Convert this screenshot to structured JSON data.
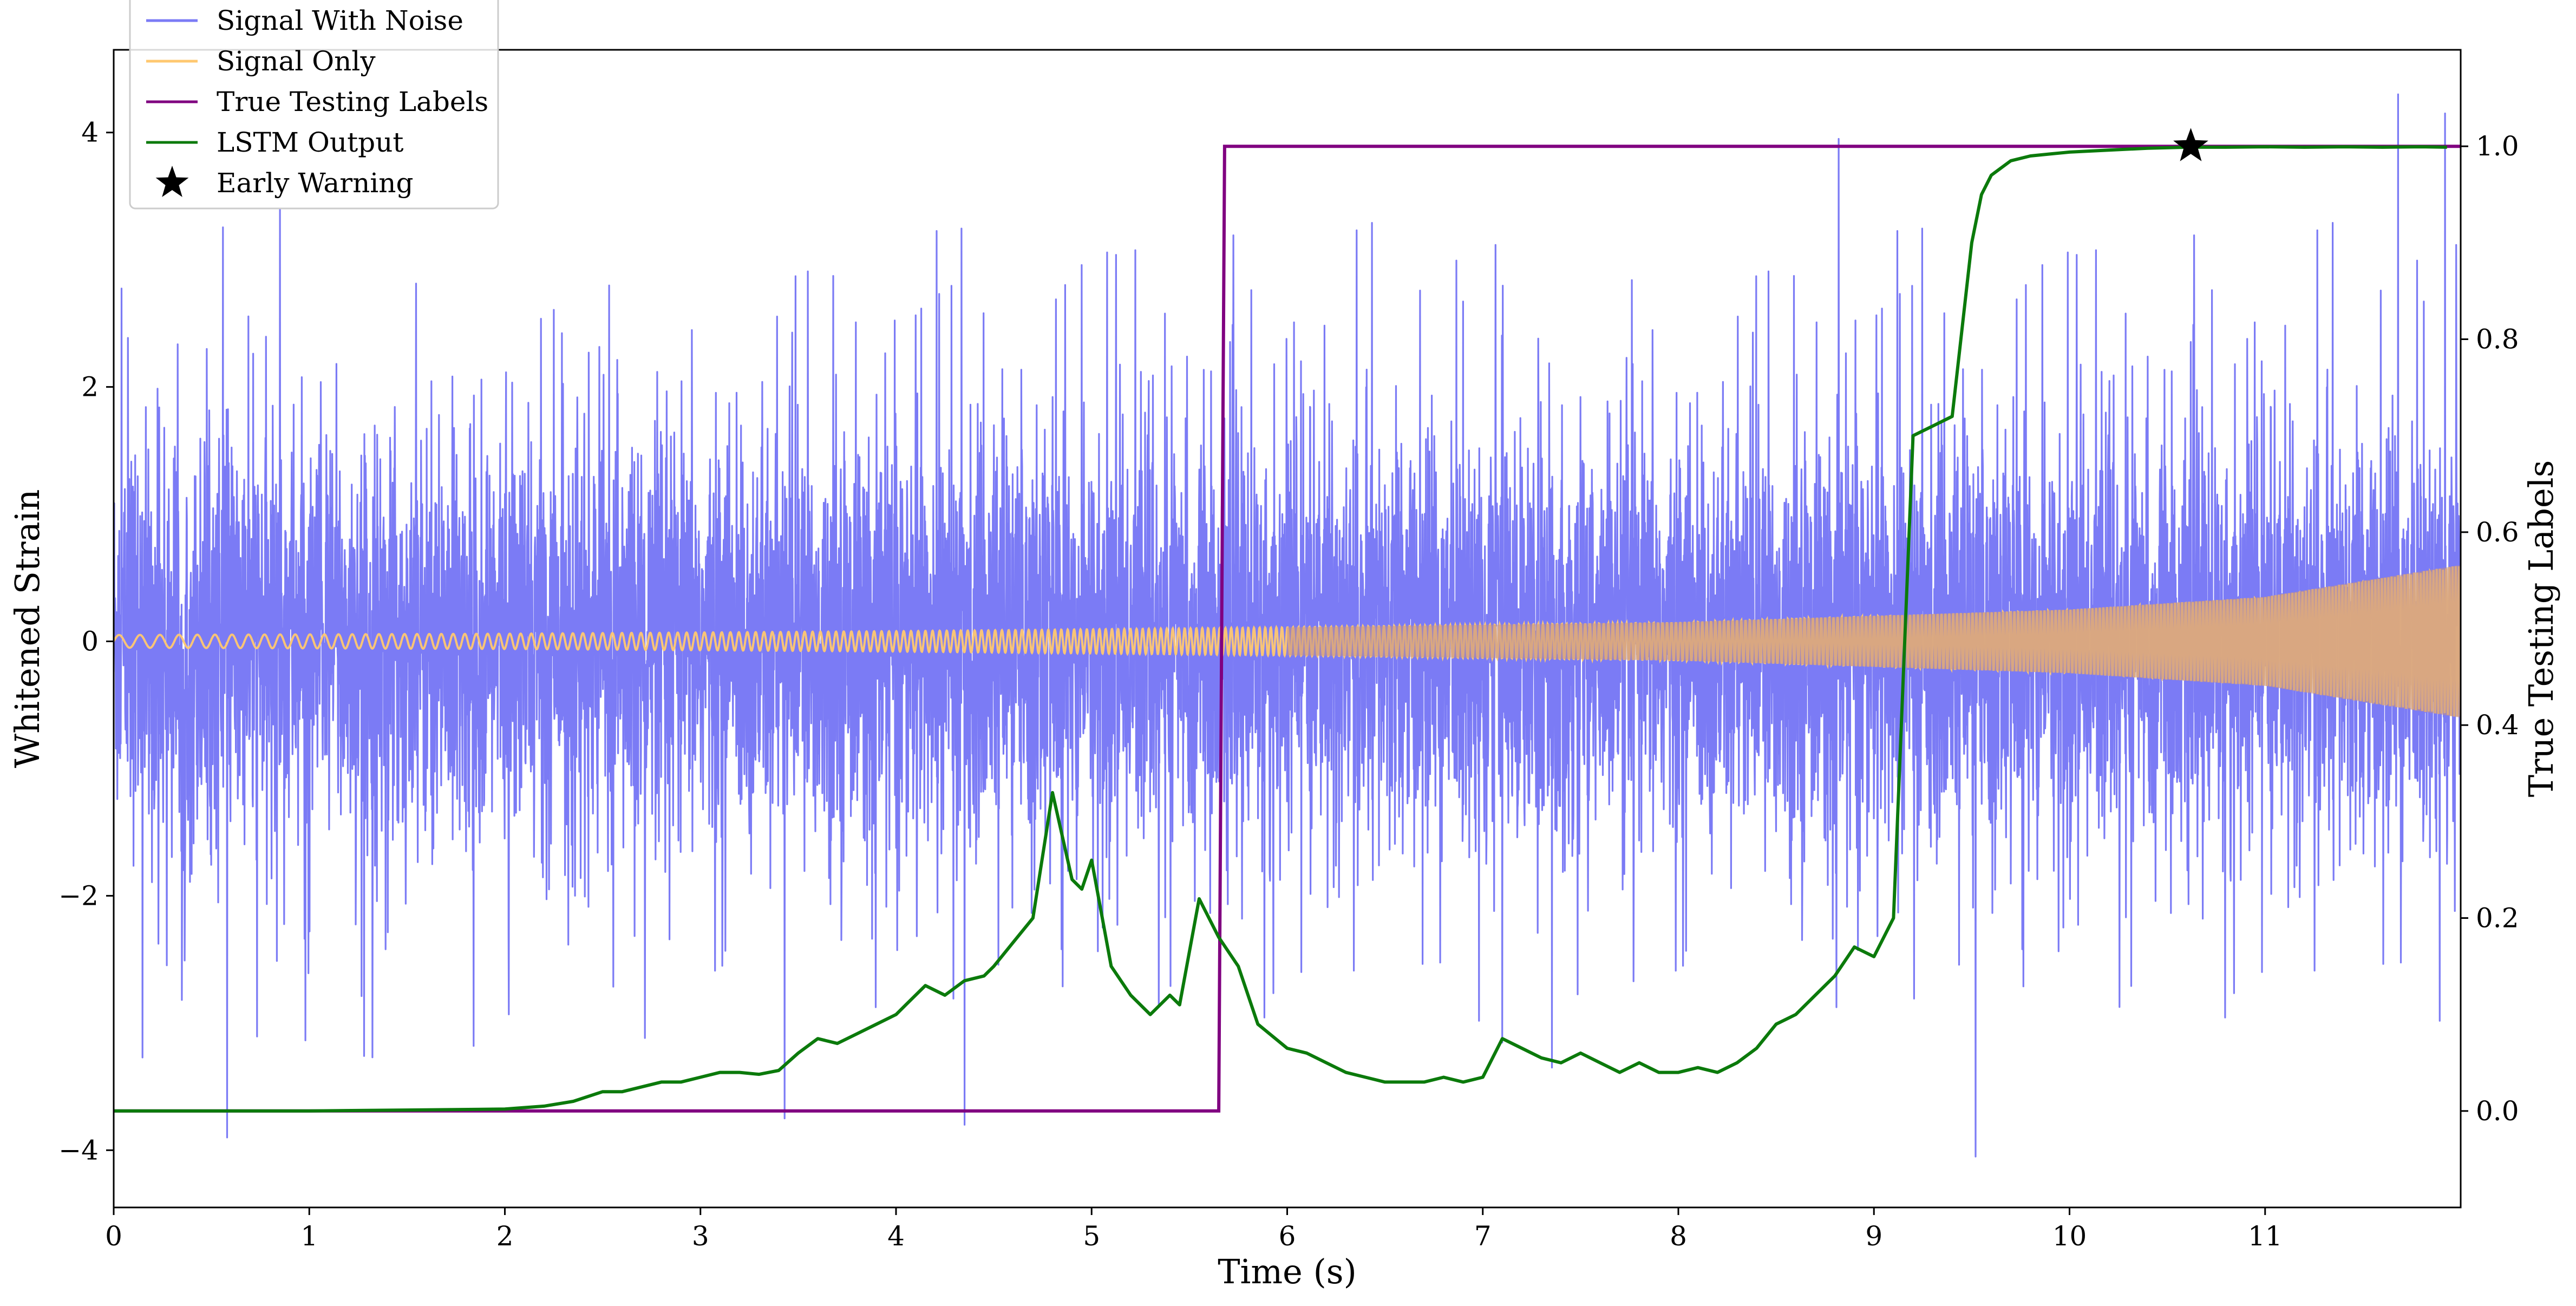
{
  "chart_data": {
    "type": "line",
    "title": "",
    "xlabel": "Time (s)",
    "ylabel_left": "Whitened Strain",
    "ylabel_right": "True Testing Labels",
    "xlim": [
      0,
      12
    ],
    "ylim_left": [
      -4.45,
      4.65
    ],
    "ylim_right": [
      -0.1,
      1.1
    ],
    "x_ticks": [
      0,
      1,
      2,
      3,
      4,
      5,
      6,
      7,
      8,
      9,
      10,
      11
    ],
    "x_tick_labels": [
      "0",
      "1",
      "2",
      "3",
      "4",
      "5",
      "6",
      "7",
      "8",
      "9",
      "10",
      "11"
    ],
    "y_left_ticks": [
      -4,
      -2,
      0,
      2,
      4
    ],
    "y_left_tick_labels": [
      "−4",
      "−2",
      "0",
      "2",
      "4"
    ],
    "y_right_ticks": [
      0.0,
      0.2,
      0.4,
      0.6,
      0.8,
      1.0
    ],
    "y_right_tick_labels": [
      "0.0",
      "0.2",
      "0.4",
      "0.6",
      "0.8",
      "1.0"
    ],
    "grid": false,
    "legend_position": "top-left",
    "colors": {
      "noise": "#7b7bf5",
      "signal": "#ffc870",
      "overlap": "#c0908a",
      "labels": "#800080",
      "lstm": "#0b7a0b",
      "warning": "#000000"
    },
    "series": [
      {
        "name": "Signal With Noise",
        "axis": "left",
        "description_amplitude": "zero-mean noise, typical band ±1.3, peaks about ±3.4",
        "peaks": [
          {
            "x": 0.58,
            "y": -3.9
          },
          {
            "x": 0.85,
            "y": 3.4
          },
          {
            "x": 3.43,
            "y": -3.75
          },
          {
            "x": 4.35,
            "y": -3.8
          },
          {
            "x": 8.82,
            "y": 3.95
          },
          {
            "x": 9.52,
            "y": -4.05
          },
          {
            "x": 11.68,
            "y": 4.3
          },
          {
            "x": 11.92,
            "y": 4.15
          }
        ]
      },
      {
        "name": "Signal Only",
        "axis": "left",
        "envelope": {
          "x": [
            0,
            2,
            4,
            6,
            8,
            10,
            11,
            12
          ],
          "amp": [
            0.05,
            0.06,
            0.08,
            0.11,
            0.15,
            0.25,
            0.35,
            0.6
          ]
        }
      },
      {
        "name": "True Testing Labels",
        "axis": "right",
        "x": [
          0,
          5.65,
          5.68,
          12
        ],
        "y": [
          0,
          0,
          1,
          1
        ]
      },
      {
        "name": "LSTM Output",
        "axis": "right",
        "x": [
          0,
          1,
          2,
          2.2,
          2.35,
          2.5,
          2.6,
          2.7,
          2.8,
          2.9,
          3.0,
          3.1,
          3.2,
          3.3,
          3.4,
          3.5,
          3.6,
          3.7,
          3.8,
          3.9,
          4.0,
          4.05,
          4.1,
          4.15,
          4.25,
          4.35,
          4.45,
          4.5,
          4.6,
          4.7,
          4.8,
          4.9,
          4.95,
          5.0,
          5.1,
          5.2,
          5.3,
          5.4,
          5.45,
          5.55,
          5.65,
          5.75,
          5.85,
          6.0,
          6.1,
          6.2,
          6.3,
          6.4,
          6.5,
          6.6,
          6.7,
          6.8,
          6.9,
          7.0,
          7.1,
          7.2,
          7.3,
          7.4,
          7.5,
          7.6,
          7.7,
          7.8,
          7.9,
          8.0,
          8.1,
          8.2,
          8.3,
          8.4,
          8.5,
          8.6,
          8.7,
          8.8,
          8.9,
          9.0,
          9.1,
          9.2,
          9.3,
          9.4,
          9.5,
          9.55,
          9.6,
          9.7,
          9.8,
          9.9,
          10.0,
          10.2,
          10.4,
          10.6,
          10.8,
          11.0,
          11.2,
          11.4,
          11.6,
          11.8,
          11.93
        ],
        "y": [
          0,
          0.0,
          0.002,
          0.005,
          0.01,
          0.02,
          0.02,
          0.025,
          0.03,
          0.03,
          0.035,
          0.04,
          0.04,
          0.038,
          0.042,
          0.06,
          0.075,
          0.07,
          0.08,
          0.09,
          0.1,
          0.11,
          0.12,
          0.13,
          0.12,
          0.135,
          0.14,
          0.15,
          0.175,
          0.2,
          0.33,
          0.24,
          0.23,
          0.26,
          0.15,
          0.12,
          0.1,
          0.12,
          0.11,
          0.22,
          0.18,
          0.15,
          0.09,
          0.065,
          0.06,
          0.05,
          0.04,
          0.035,
          0.03,
          0.03,
          0.03,
          0.035,
          0.03,
          0.035,
          0.075,
          0.065,
          0.055,
          0.05,
          0.06,
          0.05,
          0.04,
          0.05,
          0.04,
          0.04,
          0.045,
          0.04,
          0.05,
          0.065,
          0.09,
          0.1,
          0.12,
          0.14,
          0.17,
          0.16,
          0.2,
          0.7,
          0.71,
          0.72,
          0.9,
          0.95,
          0.97,
          0.985,
          0.99,
          0.992,
          0.994,
          0.996,
          0.998,
          0.999,
          0.999,
          0.9995,
          0.999,
          0.9995,
          0.999,
          0.9995,
          0.999
        ]
      },
      {
        "name": "Early Warning",
        "axis": "right",
        "x": [
          10.62
        ],
        "y": [
          1.0
        ]
      }
    ]
  }
}
